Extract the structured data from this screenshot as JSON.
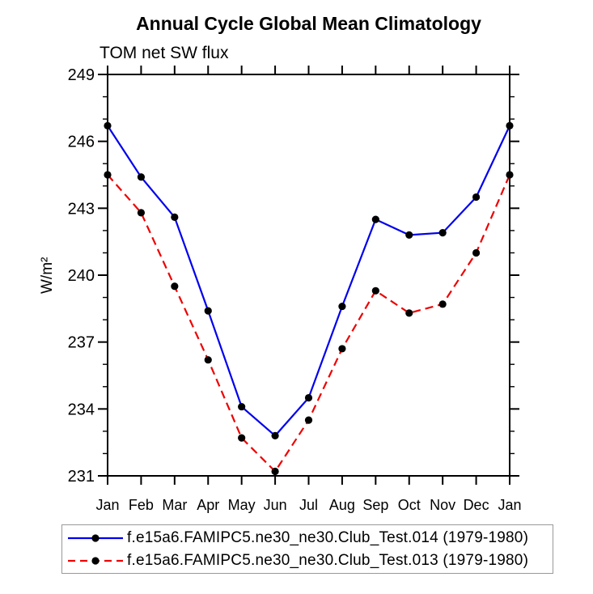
{
  "title": "Annual Cycle Global Mean Climatology",
  "subtitle": "TOM net SW flux",
  "chart_data": {
    "type": "line",
    "categories": [
      "Jan",
      "Feb",
      "Mar",
      "Apr",
      "May",
      "Jun",
      "Jul",
      "Aug",
      "Sep",
      "Oct",
      "Nov",
      "Dec",
      "Jan"
    ],
    "series": [
      {
        "name": "f.e15a6.FAMIPC5.ne30_ne30.Club_Test.014 (1979-1980)",
        "color": "#0000ee",
        "line_style": "solid",
        "marker": "filled-circle",
        "values": [
          246.7,
          244.4,
          242.6,
          238.4,
          234.1,
          232.8,
          234.5,
          238.6,
          242.5,
          241.8,
          241.9,
          243.5,
          246.7
        ]
      },
      {
        "name": "f.e15a6.FAMIPC5.ne30_ne30.Club_Test.013 (1979-1980)",
        "color": "#ee0000",
        "line_style": "dashed",
        "marker": "filled-circle",
        "values": [
          244.5,
          242.8,
          239.5,
          236.2,
          232.7,
          231.2,
          233.5,
          236.7,
          239.3,
          238.3,
          238.7,
          241.0,
          244.5
        ]
      }
    ],
    "title": "Annual Cycle Global Mean Climatology",
    "subtitle": "TOM net SW flux",
    "xlabel": "",
    "ylabel": "W/m²",
    "ylim": [
      231,
      249
    ],
    "yticks_major": [
      231,
      234,
      237,
      240,
      243,
      246,
      249
    ],
    "ytick_minor_step": 1,
    "grid": false,
    "legend_position": "bottom",
    "marker_color": "#000000",
    "axis_color": "#000000"
  }
}
